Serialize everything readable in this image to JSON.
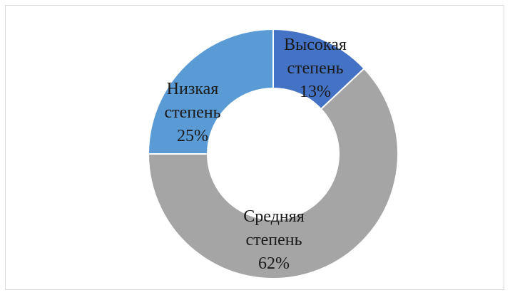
{
  "chart_data": {
    "type": "pie",
    "variant": "donut",
    "title": "",
    "legend": "none",
    "categories": [
      "Высокая степень",
      "Средняя степень",
      "Низкая степень"
    ],
    "values": [
      13,
      62,
      25
    ],
    "value_labels": [
      "13%",
      "62%",
      "25%"
    ],
    "label_lines": [
      [
        "Высокая",
        "степень",
        "13%"
      ],
      [
        "Средняя",
        "степень",
        "62%"
      ],
      [
        "Низкая",
        "степень",
        "25%"
      ]
    ],
    "colors": [
      "#4472c4",
      "#a5a5a5",
      "#5b9bd5"
    ],
    "start_angle_deg": 0,
    "direction": "clockwise"
  }
}
